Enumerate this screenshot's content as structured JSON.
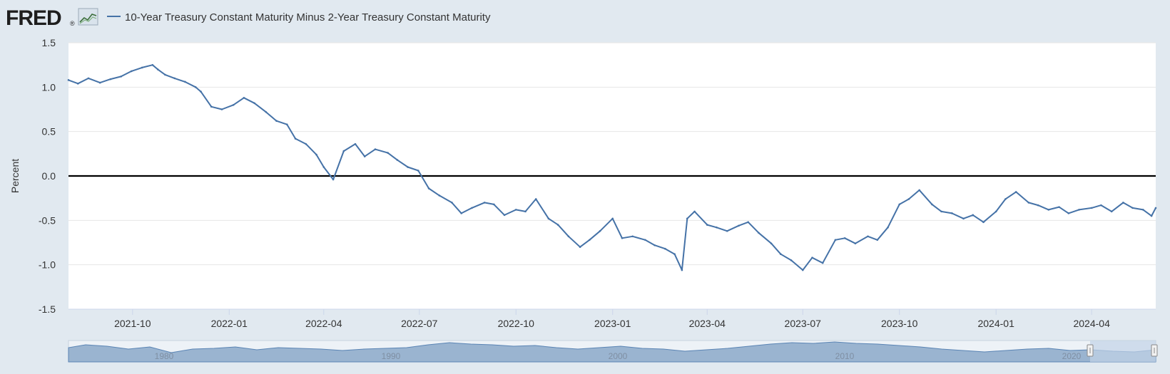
{
  "header": {
    "logo_text": "FRED",
    "logo_mark": "®",
    "logo_icon": "line-chart-icon",
    "series_legend": "10-Year Treasury Constant Maturity Minus 2-Year Treasury Constant Maturity"
  },
  "colors": {
    "background": "#e1e9f0",
    "plot_background": "#ffffff",
    "series_line": "#4572a7",
    "zero_line": "#000000",
    "navigator_fill": "#9ab4d0",
    "navigator_selection": "#c2d3e7",
    "axis_text": "#333333"
  },
  "navigator": {
    "labels": [
      "1980",
      "1990",
      "2000",
      "2010",
      "2020"
    ]
  },
  "chart_data": {
    "type": "line",
    "ylabel": "Percent",
    "xlabel": "",
    "ylim": [
      -1.5,
      1.5
    ],
    "xlim": [
      "2021-08-01",
      "2024-06-01"
    ],
    "y_ticks": [
      1.5,
      1.0,
      0.5,
      0.0,
      -0.5,
      -1.0,
      -1.5
    ],
    "y_tick_labels": [
      "1.5",
      "1.0",
      "0.5",
      "0.0",
      "-0.5",
      "-1.0",
      "-1.5"
    ],
    "x_ticks": [
      "2021-10-01",
      "2022-01-01",
      "2022-04-01",
      "2022-07-01",
      "2022-10-01",
      "2023-01-01",
      "2023-04-01",
      "2023-07-01",
      "2023-10-01",
      "2024-01-01",
      "2024-04-01"
    ],
    "x_tick_labels": [
      "2021-10",
      "2022-01",
      "2022-04",
      "2022-07",
      "2022-10",
      "2023-01",
      "2023-04",
      "2023-07",
      "2023-10",
      "2024-01",
      "2024-04"
    ],
    "grid": true,
    "series": [
      {
        "name": "10-Year Treasury Constant Maturity Minus 2-Year Treasury Constant Maturity",
        "x": [
          "2021-08-01",
          "2021-08-10",
          "2021-08-20",
          "2021-08-31",
          "2021-09-10",
          "2021-09-20",
          "2021-09-30",
          "2021-10-10",
          "2021-10-20",
          "2021-10-25",
          "2021-11-01",
          "2021-11-10",
          "2021-11-20",
          "2021-11-30",
          "2021-12-05",
          "2021-12-15",
          "2021-12-25",
          "2022-01-05",
          "2022-01-15",
          "2022-01-25",
          "2022-02-05",
          "2022-02-15",
          "2022-02-25",
          "2022-03-05",
          "2022-03-15",
          "2022-03-25",
          "2022-04-01",
          "2022-04-10",
          "2022-04-20",
          "2022-05-01",
          "2022-05-10",
          "2022-05-20",
          "2022-06-01",
          "2022-06-10",
          "2022-06-20",
          "2022-06-30",
          "2022-07-10",
          "2022-07-20",
          "2022-08-01",
          "2022-08-10",
          "2022-08-20",
          "2022-09-01",
          "2022-09-10",
          "2022-09-20",
          "2022-10-01",
          "2022-10-10",
          "2022-10-20",
          "2022-11-01",
          "2022-11-10",
          "2022-11-20",
          "2022-12-01",
          "2022-12-10",
          "2022-12-20",
          "2023-01-01",
          "2023-01-10",
          "2023-01-20",
          "2023-02-01",
          "2023-02-10",
          "2023-02-20",
          "2023-03-01",
          "2023-03-08",
          "2023-03-13",
          "2023-03-20",
          "2023-04-01",
          "2023-04-10",
          "2023-04-20",
          "2023-05-01",
          "2023-05-10",
          "2023-05-20",
          "2023-06-01",
          "2023-06-10",
          "2023-06-20",
          "2023-07-01",
          "2023-07-10",
          "2023-07-20",
          "2023-08-01",
          "2023-08-10",
          "2023-08-20",
          "2023-09-01",
          "2023-09-10",
          "2023-09-20",
          "2023-10-01",
          "2023-10-10",
          "2023-10-20",
          "2023-11-01",
          "2023-11-10",
          "2023-11-20",
          "2023-12-01",
          "2023-12-10",
          "2023-12-20",
          "2024-01-01",
          "2024-01-10",
          "2024-01-20",
          "2024-02-01",
          "2024-02-10",
          "2024-02-20",
          "2024-03-01",
          "2024-03-10",
          "2024-03-20",
          "2024-04-01",
          "2024-04-10",
          "2024-04-20",
          "2024-05-01",
          "2024-05-10",
          "2024-05-20",
          "2024-05-28",
          "2024-06-01"
        ],
        "values": [
          1.08,
          1.04,
          1.1,
          1.05,
          1.09,
          1.12,
          1.18,
          1.22,
          1.25,
          1.2,
          1.14,
          1.1,
          1.06,
          1.0,
          0.95,
          0.78,
          0.75,
          0.8,
          0.88,
          0.82,
          0.72,
          0.62,
          0.58,
          0.42,
          0.36,
          0.24,
          0.1,
          -0.04,
          0.28,
          0.36,
          0.22,
          0.3,
          0.26,
          0.18,
          0.1,
          0.06,
          -0.14,
          -0.22,
          -0.3,
          -0.42,
          -0.36,
          -0.3,
          -0.32,
          -0.44,
          -0.38,
          -0.4,
          -0.26,
          -0.48,
          -0.55,
          -0.68,
          -0.8,
          -0.72,
          -0.62,
          -0.48,
          -0.7,
          -0.68,
          -0.72,
          -0.78,
          -0.82,
          -0.88,
          -1.06,
          -0.48,
          -0.4,
          -0.55,
          -0.58,
          -0.62,
          -0.56,
          -0.52,
          -0.64,
          -0.76,
          -0.88,
          -0.95,
          -1.06,
          -0.92,
          -0.98,
          -0.72,
          -0.7,
          -0.76,
          -0.68,
          -0.72,
          -0.58,
          -0.32,
          -0.26,
          -0.16,
          -0.32,
          -0.4,
          -0.42,
          -0.48,
          -0.44,
          -0.52,
          -0.4,
          -0.26,
          -0.18,
          -0.3,
          -0.33,
          -0.38,
          -0.35,
          -0.42,
          -0.38,
          -0.36,
          -0.33,
          -0.4,
          -0.3,
          -0.36,
          -0.38,
          -0.45,
          -0.36
        ]
      }
    ]
  }
}
